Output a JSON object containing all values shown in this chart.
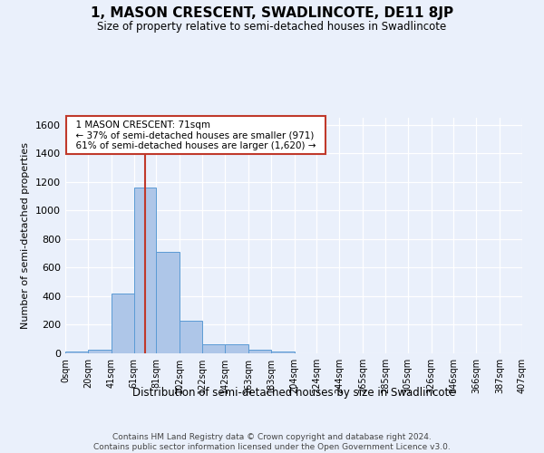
{
  "title": "1, MASON CRESCENT, SWADLINCOTE, DE11 8JP",
  "subtitle": "Size of property relative to semi-detached houses in Swadlincote",
  "xlabel": "Distribution of semi-detached houses by size in Swadlincote",
  "ylabel": "Number of semi-detached properties",
  "footer_line1": "Contains HM Land Registry data © Crown copyright and database right 2024.",
  "footer_line2": "Contains public sector information licensed under the Open Government Licence v3.0.",
  "annotation_line1": "1 MASON CRESCENT: 71sqm",
  "annotation_line2": "← 37% of semi-detached houses are smaller (971)",
  "annotation_line3": "61% of semi-detached houses are larger (1,620) →",
  "property_size": 71,
  "bin_edges": [
    0,
    20,
    41,
    61,
    81,
    102,
    122,
    142,
    163,
    183,
    204,
    224,
    244,
    265,
    285,
    305,
    326,
    346,
    366,
    387,
    407
  ],
  "bin_counts": [
    10,
    25,
    420,
    1160,
    710,
    230,
    65,
    65,
    25,
    15,
    0,
    0,
    0,
    0,
    0,
    0,
    0,
    0,
    0,
    0
  ],
  "bar_color": "#aec6e8",
  "bar_edge_color": "#5b9bd5",
  "vline_color": "#c0392b",
  "vline_x": 71,
  "ylim": [
    0,
    1650
  ],
  "yticks": [
    0,
    200,
    400,
    600,
    800,
    1000,
    1200,
    1400,
    1600
  ],
  "bg_color": "#eaf0fb",
  "grid_color": "#ffffff",
  "annotation_box_facecolor": "#ffffff",
  "annotation_box_edgecolor": "#c0392b"
}
